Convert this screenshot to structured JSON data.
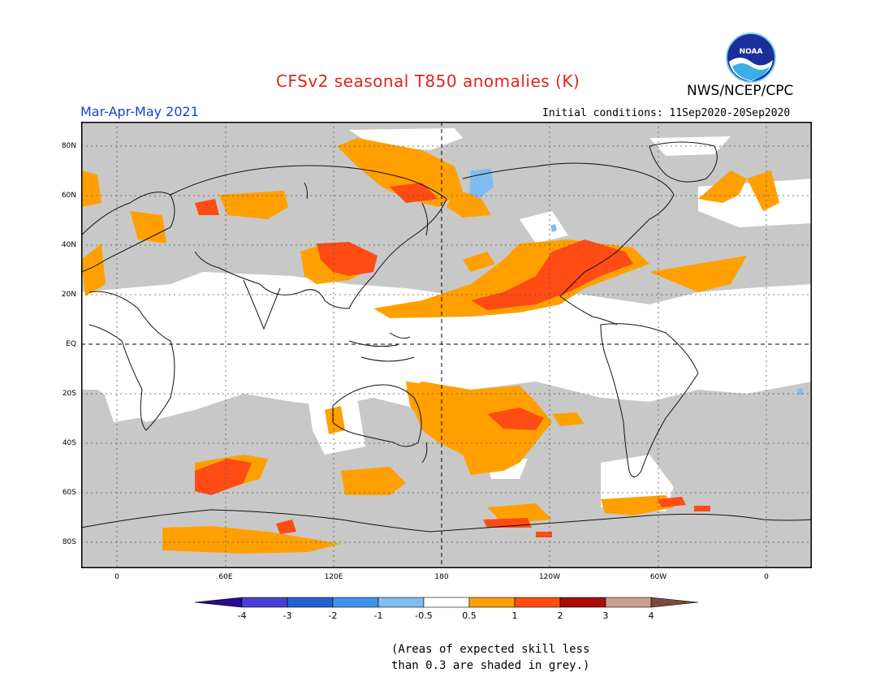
{
  "header": {
    "title": "CFSv2 seasonal T850 anomalies (K)",
    "agency": "NWS/NCEP/CPC",
    "season": "Mar-Apr-May 2021",
    "initial_conditions": "Initial conditions: 11Sep2020-20Sep2020",
    "logo_text": "NOAA"
  },
  "axes": {
    "lat_labels": [
      "80N",
      "60N",
      "40N",
      "20N",
      "EQ",
      "20S",
      "40S",
      "60S",
      "80S"
    ],
    "lon_labels": [
      "0",
      "60E",
      "120E",
      "180",
      "120W",
      "60W",
      "0"
    ]
  },
  "legend": {
    "labels": [
      "-4",
      "-3",
      "-2",
      "-1",
      "-0.5",
      "0.5",
      "1",
      "2",
      "3",
      "4"
    ],
    "colors": [
      "#2a0a8e",
      "#4a3fd0",
      "#1f63d2",
      "#3d92e8",
      "#7fbcf2",
      "#ffffff",
      "#ffa000",
      "#ff4b14",
      "#a80d0d",
      "#c9a08e",
      "#7a4a3c"
    ]
  },
  "colors": {
    "grey_skill_mask": "#c8c8c8",
    "weak": "#ffffff",
    "anom_0_5_1": "#ffa000",
    "anom_1_2": "#ff4b14",
    "anom_cold": "#7fbcf2"
  },
  "footnote": {
    "line1": "(Areas of expected skill less",
    "line2": "than 0.3 are shaded in grey.)"
  }
}
